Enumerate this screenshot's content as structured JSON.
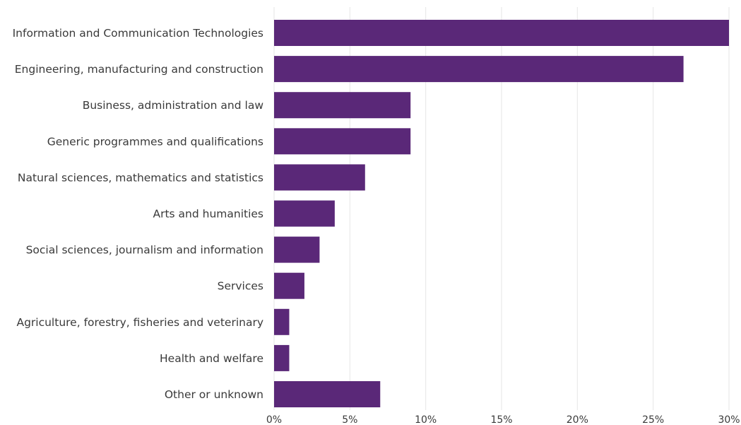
{
  "colors": {
    "bar": "#5a2878",
    "grid": "#e6e6e6",
    "text": "#3a3a3a"
  },
  "chart_data": {
    "type": "bar",
    "orientation": "horizontal",
    "title": "",
    "xlabel": "",
    "ylabel": "",
    "xlim": [
      0,
      30
    ],
    "grid": true,
    "x_tick_values": [
      0,
      5,
      10,
      15,
      20,
      25,
      30
    ],
    "x_tick_labels": [
      "0%",
      "5%",
      "10%",
      "15%",
      "20%",
      "25%",
      "30%"
    ],
    "categories": [
      "Information and Communication Technologies",
      "Engineering, manufacturing and construction",
      "Business, administration and law",
      "Generic programmes and qualifications",
      "Natural sciences, mathematics and statistics",
      "Arts and humanities",
      "Social sciences, journalism and information",
      "Services",
      "Agriculture, forestry, fisheries and veterinary",
      "Health and welfare",
      "Other or unknown"
    ],
    "values": [
      30,
      27,
      9,
      9,
      6,
      4,
      3,
      2,
      1,
      1,
      7
    ]
  }
}
